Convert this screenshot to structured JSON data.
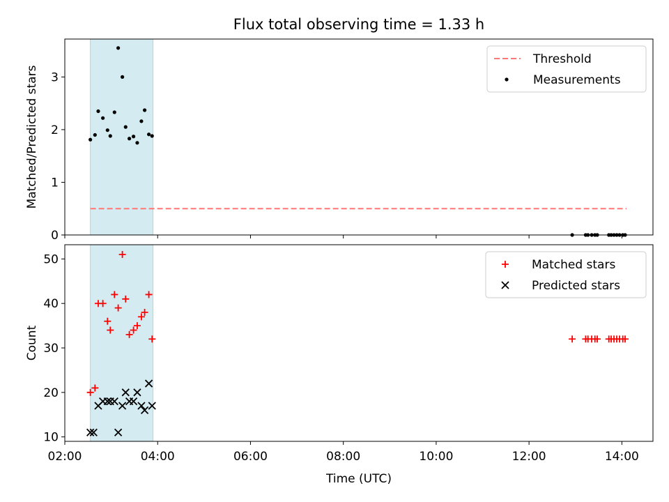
{
  "title": "Flux total observing time = 1.33 h",
  "colors": {
    "span": "#d3ebf1",
    "span_edge": "#a9d6e2",
    "threshold": "#ff7777",
    "matched": "#ff0000",
    "predicted": "#000000",
    "measurement": "#000000"
  },
  "chart_data": [
    {
      "type": "scatter",
      "panel": "top",
      "ylabel": "Matched/Predicted stars",
      "xlabel": "",
      "ylim": [
        0,
        3.72
      ],
      "yticks": [
        0,
        1,
        2,
        3
      ],
      "xlim": [
        2.0,
        14.67
      ],
      "xticks": [
        2,
        4,
        6,
        8,
        10,
        12,
        14
      ],
      "show_xtick_labels": false,
      "span": [
        2.55,
        3.9
      ],
      "threshold": {
        "label": "Threshold",
        "value": 0.5,
        "x_range": [
          2.55,
          14.1
        ]
      },
      "legend": {
        "placement": "top-right",
        "entries": [
          "Threshold",
          "Measurements"
        ]
      },
      "series": [
        {
          "name": "Measurements",
          "x": [
            2.55,
            2.65,
            2.72,
            2.82,
            2.92,
            2.98,
            3.07,
            3.15,
            3.24,
            3.31,
            3.39,
            3.48,
            3.56,
            3.65,
            3.72,
            3.81,
            3.88,
            12.93,
            13.22,
            13.27,
            13.35,
            13.42,
            13.47,
            13.72,
            13.77,
            13.83,
            13.89,
            13.95,
            14.02,
            14.07
          ],
          "y": [
            1.81,
            1.9,
            2.35,
            2.22,
            1.99,
            1.88,
            2.33,
            3.55,
            3.0,
            2.05,
            1.83,
            1.87,
            1.75,
            2.16,
            2.37,
            1.91,
            1.88,
            0.0,
            0.0,
            0.0,
            0.0,
            0.0,
            0.0,
            0.0,
            0.0,
            0.0,
            0.0,
            0.0,
            0.0,
            0.0
          ]
        }
      ]
    },
    {
      "type": "scatter",
      "panel": "bottom",
      "ylabel": "Count",
      "xlabel": "Time (UTC)",
      "ylim": [
        9,
        53.2
      ],
      "yticks": [
        10,
        20,
        30,
        40,
        50
      ],
      "xlim": [
        2.0,
        14.67
      ],
      "xticks": [
        2,
        4,
        6,
        8,
        10,
        12,
        14
      ],
      "xtick_labels": [
        "02:00",
        "04:00",
        "06:00",
        "08:00",
        "10:00",
        "12:00",
        "14:00"
      ],
      "span": [
        2.55,
        3.9
      ],
      "legend": {
        "placement": "top-right",
        "entries": [
          "Matched stars",
          "Predicted stars"
        ]
      },
      "series": [
        {
          "name": "Matched stars",
          "x": [
            2.55,
            2.65,
            2.72,
            2.82,
            2.92,
            2.98,
            3.07,
            3.15,
            3.24,
            3.31,
            3.39,
            3.48,
            3.56,
            3.65,
            3.72,
            3.81,
            3.88,
            12.93,
            13.22,
            13.27,
            13.35,
            13.42,
            13.47,
            13.72,
            13.77,
            13.83,
            13.89,
            13.95,
            14.02,
            14.07
          ],
          "y": [
            20,
            21,
            40,
            40,
            36,
            34,
            42,
            39,
            51,
            41,
            33,
            34,
            35,
            37,
            38,
            42,
            32,
            32,
            32,
            32,
            32,
            32,
            32,
            32,
            32,
            32,
            32,
            32,
            32,
            32
          ]
        },
        {
          "name": "Predicted stars",
          "x": [
            2.55,
            2.62,
            2.72,
            2.82,
            2.92,
            2.98,
            3.07,
            3.15,
            3.24,
            3.31,
            3.39,
            3.48,
            3.56,
            3.65,
            3.72,
            3.81,
            3.88
          ],
          "y": [
            11,
            11,
            17,
            18,
            18,
            18,
            18,
            11,
            17,
            20,
            18,
            18,
            20,
            17,
            16,
            22,
            17
          ]
        }
      ]
    }
  ]
}
